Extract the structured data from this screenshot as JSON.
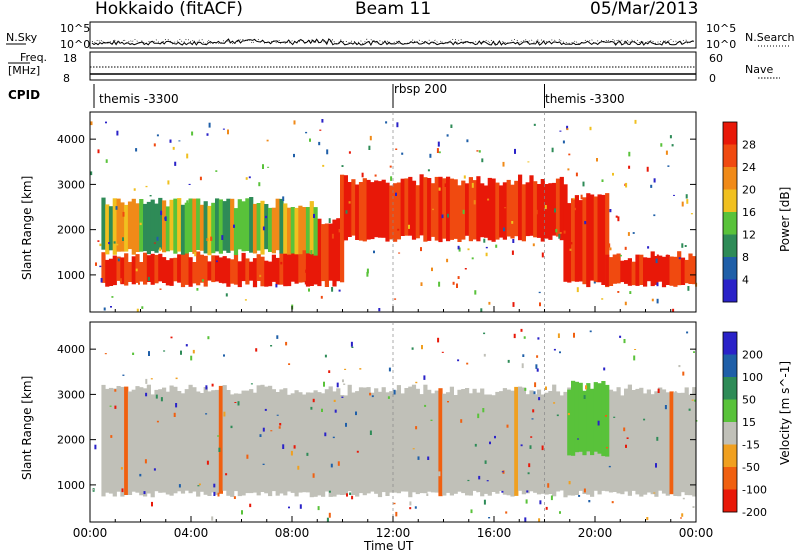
{
  "header": {
    "station": "Hokkaido (fitACF)",
    "beam": "Beam 11",
    "date": "05/Mar/2013"
  },
  "top_panels": {
    "nsky_label": "N.Sky",
    "nsky_ticks": [
      "10^5",
      "10^0"
    ],
    "nsearch_label": "N.Search",
    "nsearch_ticks": [
      "10^5",
      "10^0"
    ],
    "freq_label": "Freq.",
    "freq_unit": "[MHz]",
    "freq_ticks": [
      "18",
      "8"
    ],
    "nave_label": "Nave",
    "nave_ticks": [
      "60",
      "0"
    ],
    "cpid_label": "CPID",
    "cpid_segments": [
      {
        "start_hour": 0,
        "label": "themis -3300"
      },
      {
        "start_hour": 12,
        "label": "rbsp 200"
      },
      {
        "start_hour": 18,
        "label": "themis -3300"
      }
    ]
  },
  "chart_data": [
    {
      "type": "heatmap",
      "title": "",
      "xlabel": "Time UT",
      "ylabel": "Slant Range [km]",
      "x_range_hours": [
        0,
        24
      ],
      "x_ticks": [
        "00:00",
        "04:00",
        "08:00",
        "12:00",
        "16:00",
        "20:00",
        "00:00"
      ],
      "ylim": [
        180,
        4600
      ],
      "y_ticks": [
        1000,
        2000,
        3000,
        4000
      ],
      "colorbar": {
        "label": "Power [dB]",
        "ticks": [
          4,
          8,
          12,
          16,
          20,
          24,
          28
        ],
        "colors": [
          "#2a22c8",
          "#1f5fa8",
          "#2e8b57",
          "#59c23a",
          "#f0c020",
          "#f08a18",
          "#f04a10",
          "#e81808"
        ]
      },
      "regions": [
        {
          "from_hour": 0.5,
          "to_hour": 7.5,
          "low_km": 800,
          "high_km": 1400,
          "level": "strong"
        },
        {
          "from_hour": 7.5,
          "to_hour": 10.0,
          "low_km": 800,
          "high_km": 2200,
          "level": "strong"
        },
        {
          "from_hour": 10.0,
          "to_hour": 18.8,
          "low_km": 1800,
          "high_km": 3100,
          "level": "strong"
        },
        {
          "from_hour": 18.8,
          "to_hour": 20.5,
          "low_km": 800,
          "high_km": 2700,
          "level": "strong"
        },
        {
          "from_hour": 20.5,
          "to_hour": 24.0,
          "low_km": 800,
          "high_km": 1400,
          "level": "strong"
        },
        {
          "from_hour": 0.5,
          "to_hour": 9.0,
          "low_km": 1500,
          "high_km": 2600,
          "level": "medium"
        }
      ]
    },
    {
      "type": "heatmap",
      "title": "",
      "xlabel": "Time UT",
      "ylabel": "Slant Range [km]",
      "x_range_hours": [
        0,
        24
      ],
      "x_ticks": [
        "00:00",
        "04:00",
        "08:00",
        "12:00",
        "16:00",
        "20:00",
        "00:00"
      ],
      "ylim": [
        180,
        4600
      ],
      "y_ticks": [
        1000,
        2000,
        3000,
        4000
      ],
      "colorbar": {
        "label": "Velocity [m s^-1]",
        "ticks": [
          200,
          100,
          50,
          15,
          -15,
          -50,
          -100,
          -200
        ],
        "colors": [
          "#2a22c8",
          "#1f5fa8",
          "#2e8b57",
          "#59c23a",
          "#c0c0b8",
          "#f0a020",
          "#f06010",
          "#e81808"
        ]
      },
      "regions": [
        {
          "from_hour": 0.5,
          "to_hour": 24.0,
          "low_km": 800,
          "high_km": 3100,
          "level": "near-zero"
        },
        {
          "from_hour": 19.0,
          "to_hour": 20.5,
          "low_km": 1700,
          "high_km": 3200,
          "level": "positive"
        }
      ]
    }
  ]
}
